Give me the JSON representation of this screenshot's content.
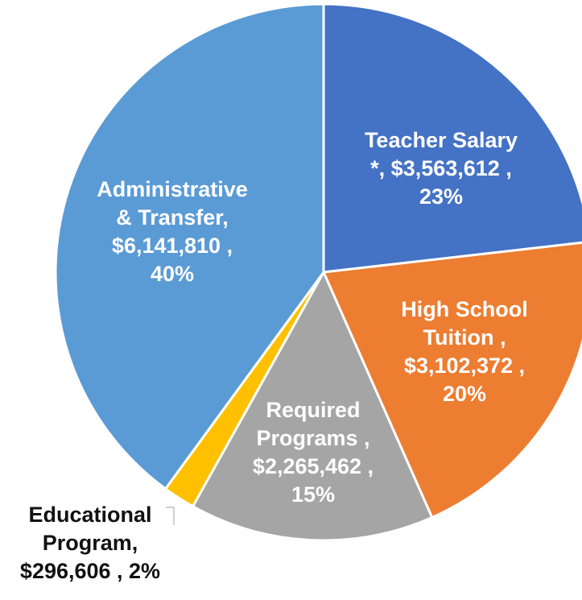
{
  "chart_data": {
    "type": "pie",
    "start_angle_deg": 0,
    "direction": "clockwise",
    "slices": [
      {
        "name": "Teacher Salary *",
        "value": 3563612,
        "percent": 23,
        "color": "#4472C4",
        "label_lines": [
          "Teacher Salary",
          "*, $3,563,612 ,",
          "23%"
        ]
      },
      {
        "name": "High School Tuition",
        "value": 3102372,
        "percent": 20,
        "color": "#ED7D31",
        "label_lines": [
          "High School",
          "Tuition ,",
          "$3,102,372 ,",
          "20%"
        ]
      },
      {
        "name": "Required Programs",
        "value": 2265462,
        "percent": 15,
        "color": "#A5A5A5",
        "label_lines": [
          "Required",
          "Programs ,",
          "$2,265,462 ,",
          "15%"
        ]
      },
      {
        "name": "Educational Program",
        "value": 296606,
        "percent": 2,
        "color": "#FFC000",
        "label_lines": [
          "Educational",
          "Program,",
          "$296,606 , 2%"
        ]
      },
      {
        "name": "Administrative & Transfer",
        "value": 6141810,
        "percent": 40,
        "color": "#5B9BD5",
        "label_lines": [
          "Administrative",
          "& Transfer,",
          "$6,141,810 ,",
          "40%"
        ]
      }
    ]
  }
}
